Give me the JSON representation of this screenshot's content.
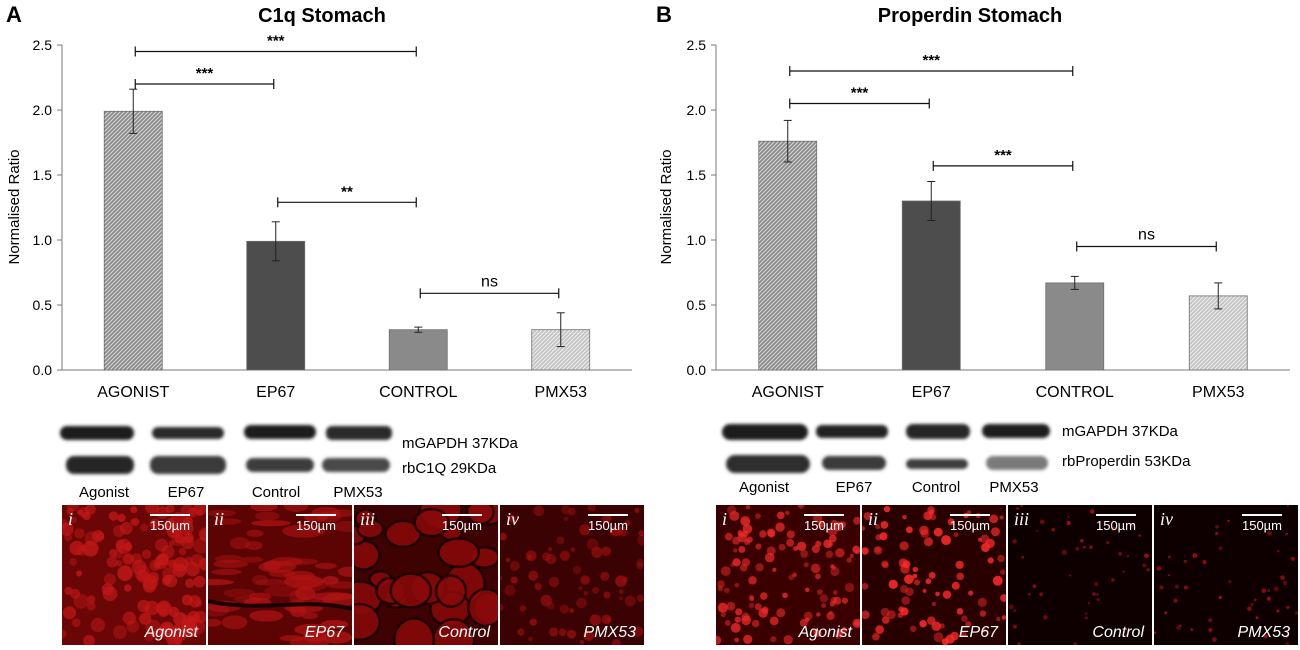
{
  "panels": [
    {
      "letter": "A",
      "chart_data": {
        "type": "bar",
        "title": "C1q Stomach",
        "ylabel": "Normalised  Ratio",
        "xlabel": "",
        "ylim": [
          0,
          2.5
        ],
        "yticks": [
          "0.0",
          "0.5",
          "1.0",
          "1.5",
          "2.0",
          "2.5"
        ],
        "categories": [
          "AGONIST",
          "EP67",
          "CONTROL",
          "PMX53"
        ],
        "values": [
          1.99,
          0.99,
          0.31,
          0.31
        ],
        "errors": [
          0.17,
          0.15,
          0.02,
          0.13
        ],
        "bar_colors": [
          "#9a9a9a",
          "#4d4d4d",
          "#8a8a8a",
          "#bdbdbd"
        ],
        "hatched": [
          true,
          false,
          false,
          true
        ],
        "significance": [
          {
            "from": 0,
            "to": 2,
            "label": "***",
            "y": 2.45
          },
          {
            "from": 0,
            "to": 1,
            "label": "***",
            "y": 2.2
          },
          {
            "from": 1,
            "to": 2,
            "label": "**",
            "y": 1.29
          },
          {
            "from": 2,
            "to": 3,
            "label": "ns",
            "y": 0.59
          }
        ],
        "grid": false
      },
      "blot": {
        "bands": [
          "mGAPDH 37KDa",
          "rbC1Q 29KDa"
        ],
        "lanes": [
          "Agonist",
          "EP67",
          "Control",
          "PMX53"
        ]
      },
      "micrographs": [
        {
          "numeral": "i",
          "caption": "Agonist",
          "scale": "150µm"
        },
        {
          "numeral": "ii",
          "caption": "EP67",
          "scale": "150µm"
        },
        {
          "numeral": "iii",
          "caption": "Control",
          "scale": "150µm"
        },
        {
          "numeral": "iv",
          "caption": "PMX53",
          "scale": "150µm"
        }
      ]
    },
    {
      "letter": "B",
      "chart_data": {
        "type": "bar",
        "title": "Properdin Stomach",
        "ylabel": "Normalised  Ratio",
        "xlabel": "",
        "ylim": [
          0,
          2.5
        ],
        "yticks": [
          "0.0",
          "0.5",
          "1.0",
          "1.5",
          "2.0",
          "2.5"
        ],
        "categories": [
          "AGONIST",
          "EP67",
          "CONTROL",
          "PMX53"
        ],
        "values": [
          1.76,
          1.3,
          0.67,
          0.57
        ],
        "errors": [
          0.16,
          0.15,
          0.05,
          0.1
        ],
        "bar_colors": [
          "#9a9a9a",
          "#4d4d4d",
          "#8a8a8a",
          "#bdbdbd"
        ],
        "hatched": [
          true,
          false,
          false,
          true
        ],
        "significance": [
          {
            "from": 0,
            "to": 2,
            "label": "***",
            "y": 2.3
          },
          {
            "from": 0,
            "to": 1,
            "label": "***",
            "y": 2.05
          },
          {
            "from": 1,
            "to": 2,
            "label": "***",
            "y": 1.57
          },
          {
            "from": 2,
            "to": 3,
            "label": "ns",
            "y": 0.95
          }
        ],
        "grid": false
      },
      "blot": {
        "bands": [
          "mGAPDH 37KDa",
          "rbProperdin 53KDa"
        ],
        "lanes": [
          "Agonist",
          "EP67",
          "Control",
          "PMX53"
        ]
      },
      "micrographs": [
        {
          "numeral": "i",
          "caption": "Agonist",
          "scale": "150µm"
        },
        {
          "numeral": "ii",
          "caption": "EP67",
          "scale": "150µm"
        },
        {
          "numeral": "iii",
          "caption": "Control",
          "scale": "150µm"
        },
        {
          "numeral": "iv",
          "caption": "PMX53",
          "scale": "150µm"
        }
      ]
    }
  ]
}
